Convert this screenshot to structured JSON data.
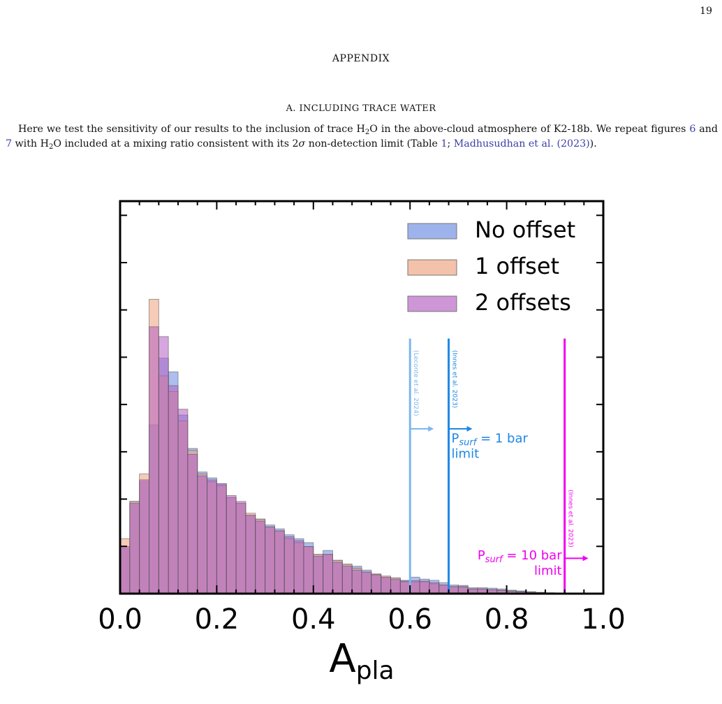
{
  "page": {
    "number": "19",
    "appendix_title": "APPENDIX",
    "section_title": "A. INCLUDING TRACE WATER",
    "paragraph": {
      "p1": "Here we test the sensitivity of our results to the inclusion of trace H",
      "p1_sub": "2",
      "p2": "O in the above-cloud atmosphere of K2-18b. We repeat figures ",
      "fig6": "6",
      "p3": " and ",
      "fig7": "7",
      "p4": " with H",
      "p4_sub": "2",
      "p5": "O included at a mixing ratio consistent with its 2",
      "sigma": "σ",
      "p6": " non-detection limit (Table ",
      "table1": "1",
      "p7": "; ",
      "ref": "Madhusudhan et al. (2023)",
      "p8": ")."
    }
  },
  "chart_data": {
    "type": "histogram",
    "xlabel": "A",
    "xlabel_sub": "pla",
    "xlim": [
      0.0,
      1.0
    ],
    "ylim": [
      0,
      1.0
    ],
    "xticks": [
      "0.0",
      "0.2",
      "0.4",
      "0.6",
      "0.8",
      "1.0"
    ],
    "xtick_values": [
      0.0,
      0.2,
      0.4,
      0.6,
      0.8,
      1.0
    ],
    "yticks_count": 8,
    "bin_width": 0.02,
    "bin_start": 0.0,
    "legend_position": "upper-right",
    "series": [
      {
        "name": "No offset",
        "color": "#6a8ae0",
        "values": [
          0.115,
          0.235,
          0.285,
          0.43,
          0.6,
          0.565,
          0.455,
          0.37,
          0.31,
          0.295,
          0.28,
          0.245,
          0.23,
          0.2,
          0.19,
          0.175,
          0.165,
          0.15,
          0.14,
          0.13,
          0.1,
          0.11,
          0.085,
          0.075,
          0.07,
          0.06,
          0.05,
          0.042,
          0.04,
          0.034,
          0.042,
          0.037,
          0.034,
          0.028,
          0.022,
          0.021,
          0.015,
          0.015,
          0.014,
          0.012,
          0.009,
          0.007,
          0.005,
          0.003,
          0.002,
          0.001,
          0.001,
          0.0,
          0.0,
          0.0
        ]
      },
      {
        "name": "1 offset",
        "color": "#eea07c",
        "values": [
          0.14,
          0.235,
          0.305,
          0.75,
          0.555,
          0.515,
          0.44,
          0.365,
          0.305,
          0.285,
          0.275,
          0.245,
          0.23,
          0.205,
          0.19,
          0.17,
          0.16,
          0.14,
          0.13,
          0.12,
          0.1,
          0.1,
          0.085,
          0.075,
          0.065,
          0.055,
          0.05,
          0.045,
          0.04,
          0.03,
          0.03,
          0.03,
          0.025,
          0.022,
          0.018,
          0.018,
          0.012,
          0.012,
          0.01,
          0.009,
          0.007,
          0.005,
          0.004,
          0.003,
          0.002,
          0.001,
          0.001,
          0.0,
          0.0,
          0.0
        ]
      },
      {
        "name": "2 offsets",
        "color": "#b45ec2",
        "values": [
          0.12,
          0.23,
          0.29,
          0.68,
          0.655,
          0.53,
          0.47,
          0.355,
          0.3,
          0.29,
          0.28,
          0.25,
          0.235,
          0.2,
          0.185,
          0.17,
          0.16,
          0.145,
          0.135,
          0.12,
          0.095,
          0.1,
          0.08,
          0.07,
          0.06,
          0.055,
          0.048,
          0.042,
          0.036,
          0.032,
          0.033,
          0.032,
          0.028,
          0.022,
          0.018,
          0.017,
          0.012,
          0.012,
          0.01,
          0.008,
          0.006,
          0.005,
          0.004,
          0.003,
          0.002,
          0.001,
          0.001,
          0.0,
          0.0,
          0.0
        ]
      }
    ],
    "limits": [
      {
        "x": 0.6,
        "color": "#7cb6ef",
        "label": "(Leconte et al. 2024)",
        "ymax": 0.65
      },
      {
        "x": 0.68,
        "color": "#1e87e6",
        "label": "(Innes et al. 2023)",
        "ymax": 0.65,
        "text_pre": "P",
        "text_sub": "surf",
        "text_post": " = 1 bar",
        "text_line2": "limit"
      },
      {
        "x": 0.92,
        "color": "#f000f0",
        "label": "(Innes et al. 2023)",
        "ymax": 0.65,
        "text_pre": "P",
        "text_sub": "surf",
        "text_post": " = 10 bar",
        "text_line2": "limit"
      }
    ]
  }
}
